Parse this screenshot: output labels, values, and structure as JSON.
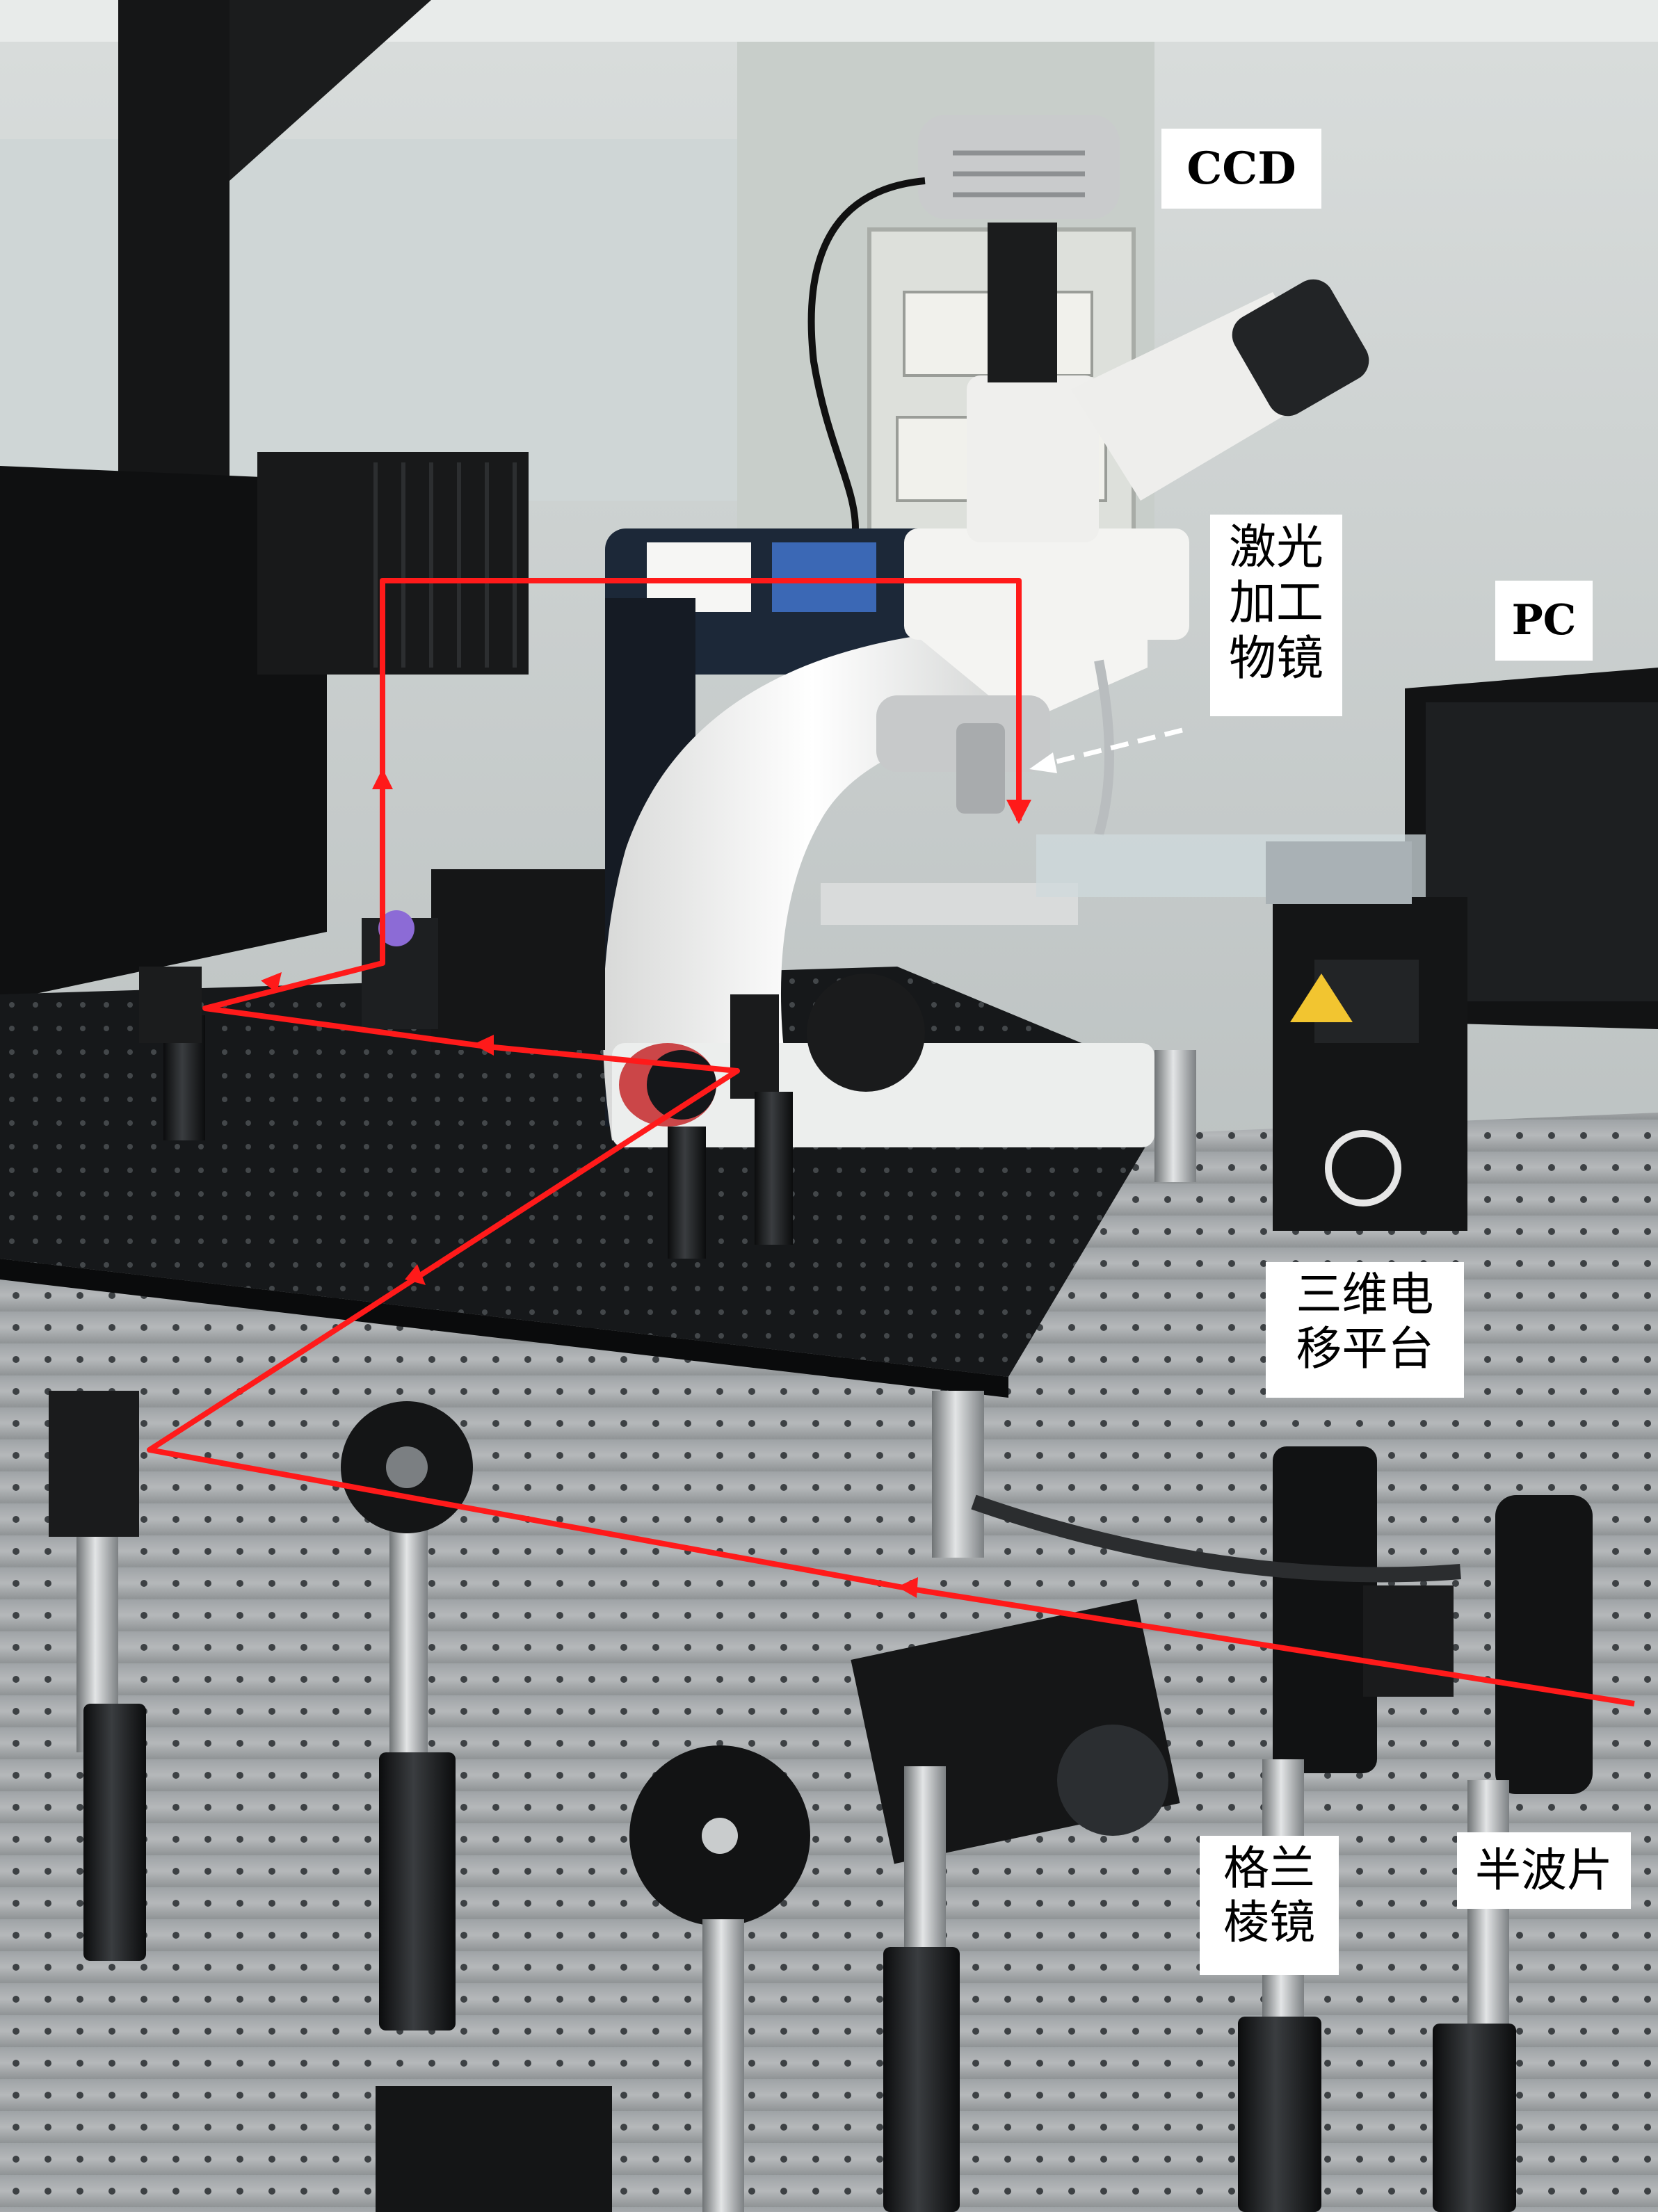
{
  "labels": {
    "ccd": "CCD",
    "laser_objective": [
      "激光",
      "加工",
      "物镜"
    ],
    "pc": "PC",
    "stage": [
      "三维电",
      "移平台"
    ],
    "glan_prism": [
      "格兰",
      "棱镜"
    ],
    "half_wave_plate": "半波片"
  },
  "colors": {
    "beam": "#ff1a1a",
    "optical_table": "#a7abad",
    "breadboard": "#151719",
    "microscope_body": "#f1f1ef"
  }
}
